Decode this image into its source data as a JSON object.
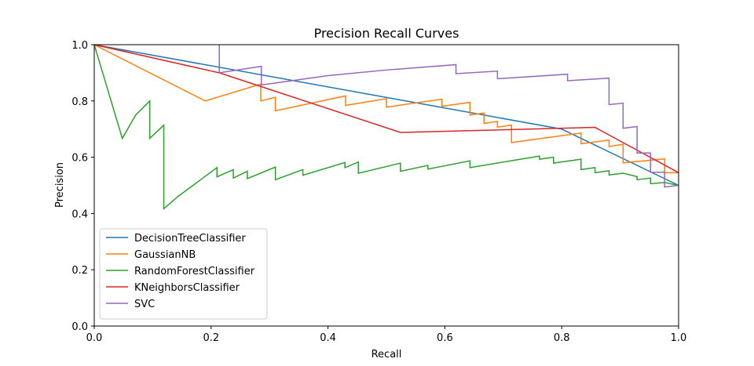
{
  "chart_data": {
    "type": "line",
    "title": "Precision Recall Curves",
    "xlabel": "Recall",
    "ylabel": "Precision",
    "xlim": [
      0.0,
      1.0
    ],
    "ylim": [
      0.0,
      1.0
    ],
    "xticks": [
      "0.0",
      "0.2",
      "0.4",
      "0.6",
      "0.8",
      "1.0"
    ],
    "yticks": [
      "0.0",
      "0.2",
      "0.4",
      "0.6",
      "0.8",
      "1.0"
    ],
    "grid": false,
    "legend_position": "lower-left",
    "series": [
      {
        "name": "DecisionTreeClassifier",
        "color": "#1f77b4",
        "points": [
          [
            0.0,
            1.0
          ],
          [
            0.8,
            0.7
          ],
          [
            1.0,
            0.5
          ]
        ]
      },
      {
        "name": "GaussianNB",
        "color": "#ff7f0e",
        "points": [
          [
            0.0,
            1.0
          ],
          [
            0.19,
            0.8
          ],
          [
            0.285,
            0.86
          ],
          [
            0.285,
            0.8
          ],
          [
            0.31,
            0.813
          ],
          [
            0.31,
            0.765
          ],
          [
            0.43,
            0.818
          ],
          [
            0.43,
            0.784
          ],
          [
            0.5,
            0.808
          ],
          [
            0.5,
            0.778
          ],
          [
            0.595,
            0.806
          ],
          [
            0.595,
            0.781
          ],
          [
            0.643,
            0.795
          ],
          [
            0.643,
            0.75
          ],
          [
            0.667,
            0.757
          ],
          [
            0.667,
            0.72
          ],
          [
            0.69,
            0.727
          ],
          [
            0.69,
            0.707
          ],
          [
            0.714,
            0.714
          ],
          [
            0.714,
            0.652
          ],
          [
            0.833,
            0.686
          ],
          [
            0.833,
            0.648
          ],
          [
            0.881,
            0.661
          ],
          [
            0.881,
            0.638
          ],
          [
            0.905,
            0.646
          ],
          [
            0.905,
            0.58
          ],
          [
            0.976,
            0.594
          ],
          [
            0.976,
            0.545
          ],
          [
            1.0,
            0.545
          ]
        ]
      },
      {
        "name": "RandomForestClassifier",
        "color": "#2ca02c",
        "points": [
          [
            0.0,
            1.0
          ],
          [
            0.048,
            0.667
          ],
          [
            0.071,
            0.75
          ],
          [
            0.095,
            0.8
          ],
          [
            0.095,
            0.667
          ],
          [
            0.119,
            0.714
          ],
          [
            0.119,
            0.417
          ],
          [
            0.143,
            0.46
          ],
          [
            0.21,
            0.563
          ],
          [
            0.21,
            0.53
          ],
          [
            0.238,
            0.556
          ],
          [
            0.238,
            0.526
          ],
          [
            0.262,
            0.55
          ],
          [
            0.262,
            0.524
          ],
          [
            0.31,
            0.565
          ],
          [
            0.31,
            0.52
          ],
          [
            0.357,
            0.556
          ],
          [
            0.357,
            0.536
          ],
          [
            0.429,
            0.581
          ],
          [
            0.429,
            0.563
          ],
          [
            0.452,
            0.583
          ],
          [
            0.452,
            0.543
          ],
          [
            0.524,
            0.579
          ],
          [
            0.524,
            0.55
          ],
          [
            0.571,
            0.571
          ],
          [
            0.571,
            0.558
          ],
          [
            0.643,
            0.587
          ],
          [
            0.643,
            0.563
          ],
          [
            0.762,
            0.604
          ],
          [
            0.762,
            0.593
          ],
          [
            0.786,
            0.6
          ],
          [
            0.786,
            0.579
          ],
          [
            0.833,
            0.593
          ],
          [
            0.833,
            0.556
          ],
          [
            0.857,
            0.563
          ],
          [
            0.857,
            0.545
          ],
          [
            0.881,
            0.552
          ],
          [
            0.881,
            0.537
          ],
          [
            0.905,
            0.543
          ],
          [
            0.929,
            0.531
          ],
          [
            0.929,
            0.52
          ],
          [
            0.952,
            0.526
          ],
          [
            0.952,
            0.506
          ],
          [
            0.976,
            0.51
          ],
          [
            1.0,
            0.5
          ]
        ]
      },
      {
        "name": "KNeighborsClassifier",
        "color": "#d62728",
        "points": [
          [
            0.0,
            1.0
          ],
          [
            0.214,
            0.9
          ],
          [
            0.524,
            0.688
          ],
          [
            0.857,
            0.706
          ],
          [
            1.0,
            0.545
          ]
        ]
      },
      {
        "name": "SVC",
        "color": "#9467bd",
        "points": [
          [
            0.214,
            1.0
          ],
          [
            0.214,
            0.9
          ],
          [
            0.286,
            0.923
          ],
          [
            0.286,
            0.857
          ],
          [
            0.4,
            0.89
          ],
          [
            0.5,
            0.91
          ],
          [
            0.619,
            0.929
          ],
          [
            0.619,
            0.897
          ],
          [
            0.69,
            0.906
          ],
          [
            0.69,
            0.879
          ],
          [
            0.81,
            0.895
          ],
          [
            0.81,
            0.872
          ],
          [
            0.881,
            0.881
          ],
          [
            0.881,
            0.787
          ],
          [
            0.905,
            0.792
          ],
          [
            0.905,
            0.703
          ],
          [
            0.929,
            0.709
          ],
          [
            0.929,
            0.615
          ],
          [
            0.952,
            0.615
          ],
          [
            0.952,
            0.546
          ],
          [
            0.976,
            0.547
          ],
          [
            0.976,
            0.494
          ],
          [
            1.0,
            0.5
          ]
        ]
      }
    ]
  }
}
